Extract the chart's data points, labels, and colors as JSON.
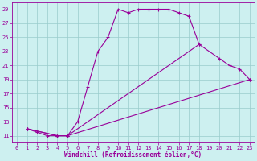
{
  "xlabel": "Windchill (Refroidissement éolien,°C)",
  "bg_color": "#cdf0f0",
  "line_color": "#990099",
  "grid_color": "#99cccc",
  "xlim": [
    -0.5,
    23.5
  ],
  "ylim": [
    10.0,
    30.0
  ],
  "yticks": [
    11,
    13,
    15,
    17,
    19,
    21,
    23,
    25,
    27,
    29
  ],
  "xticks": [
    0,
    1,
    2,
    3,
    4,
    5,
    6,
    7,
    8,
    9,
    10,
    11,
    12,
    13,
    14,
    15,
    16,
    17,
    18,
    19,
    20,
    21,
    22,
    23
  ],
  "curve1_x": [
    1,
    2,
    3,
    4,
    5,
    6,
    7,
    8,
    9,
    10,
    11,
    12,
    13,
    14,
    15,
    16,
    17,
    18
  ],
  "curve1_y": [
    12,
    11.5,
    11,
    11,
    11,
    13,
    18,
    23,
    25,
    29,
    28.5,
    29,
    29,
    29,
    29,
    28.5,
    28,
    24
  ],
  "curve2_x": [
    1,
    4,
    5,
    18,
    20,
    21,
    22,
    23
  ],
  "curve2_y": [
    12,
    11,
    11,
    24,
    22,
    21,
    20.5,
    19
  ],
  "curve3_x": [
    1,
    4,
    5,
    23
  ],
  "curve3_y": [
    12,
    11,
    11,
    19
  ],
  "marker": "+",
  "lw": 0.8,
  "ms": 3.5,
  "mew": 0.8,
  "xlabel_fontsize": 5.5,
  "tick_fontsize": 5
}
